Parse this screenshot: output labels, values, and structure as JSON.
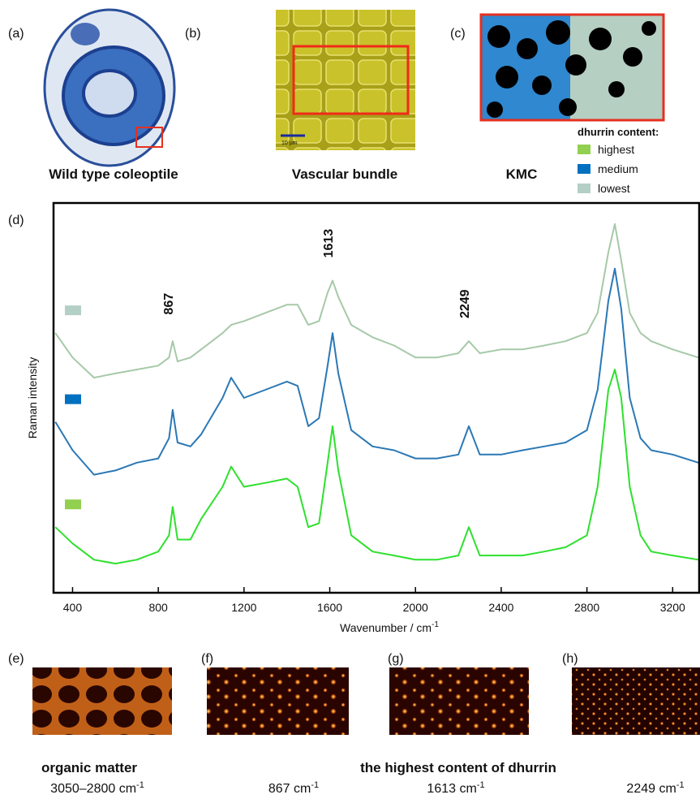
{
  "panels": {
    "a": {
      "label": "(a)",
      "caption": "Wild type coleoptile"
    },
    "b": {
      "label": "(b)",
      "caption": "Vascular bundle",
      "scale": "10 µm"
    },
    "c": {
      "label": "(c)",
      "caption": "KMC"
    },
    "d": {
      "label": "(d)"
    },
    "e": {
      "label": "(e)",
      "title": "organic matter",
      "band": {
        "text": "3050–2800 cm",
        "sup": "-1"
      }
    },
    "f": {
      "label": "(f)",
      "band": {
        "text": "867 cm",
        "sup": "-1"
      }
    },
    "g": {
      "label": "(g)",
      "band": {
        "text": "1613 cm",
        "sup": "-1"
      }
    },
    "h": {
      "label": "(h)",
      "band": {
        "text": "2249 cm",
        "sup": "-1"
      }
    },
    "fgh_title": "the highest content of dhurrin"
  },
  "legend_title": "dhurrin content:",
  "chart_data": {
    "type": "line",
    "xlabel": {
      "text": "Wavenumber / cm",
      "sup": "-1"
    },
    "ylabel": "Raman intensity",
    "xlim": [
      315,
      3320
    ],
    "ylim": [
      0,
      100
    ],
    "xticks": [
      400,
      800,
      1200,
      1600,
      2000,
      2400,
      2800,
      3200
    ],
    "annotations": [
      867,
      1613,
      2249
    ],
    "x": [
      320,
      400,
      500,
      600,
      700,
      800,
      850,
      867,
      890,
      950,
      1000,
      1100,
      1140,
      1200,
      1300,
      1400,
      1450,
      1500,
      1550,
      1590,
      1613,
      1640,
      1700,
      1800,
      1900,
      2000,
      2100,
      2200,
      2249,
      2300,
      2400,
      2500,
      2600,
      2700,
      2800,
      2850,
      2900,
      2930,
      2960,
      3000,
      3050,
      3100,
      3200,
      3320
    ],
    "series": [
      {
        "name": "highest",
        "color": "#2ee02e",
        "legend_color": "#92d050",
        "values": [
          16.7,
          12.5,
          8.3,
          7.3,
          8.3,
          10.4,
          14.6,
          21.9,
          13.5,
          13.5,
          18.8,
          27.1,
          32.3,
          27.1,
          28.1,
          29.2,
          27.1,
          16.7,
          17.7,
          33.3,
          42.7,
          31.3,
          14.6,
          10.4,
          9.4,
          8.3,
          8.3,
          9.4,
          16.7,
          9.4,
          9.4,
          9.4,
          10.4,
          11.5,
          14.6,
          27.1,
          52.1,
          57.3,
          50.0,
          27.1,
          14.6,
          10.4,
          9.4,
          8.3
        ]
      },
      {
        "name": "medium",
        "color": "#2a78b5",
        "legend_color": "#0070c0",
        "values": [
          43.8,
          36.5,
          30.2,
          31.3,
          33.3,
          34.4,
          39.6,
          46.9,
          38.5,
          37.5,
          40.6,
          50.0,
          55.2,
          50.0,
          52.1,
          54.2,
          53.1,
          42.7,
          44.8,
          58.3,
          66.7,
          56.3,
          41.7,
          37.5,
          36.5,
          34.4,
          34.4,
          35.4,
          42.7,
          35.4,
          35.4,
          36.5,
          37.5,
          38.5,
          41.7,
          52.1,
          75.0,
          83.3,
          72.9,
          50.0,
          39.6,
          36.5,
          35.4,
          33.3
        ]
      },
      {
        "name": "lowest",
        "color": "#a6c9a8",
        "legend_color": "#b4cfc6",
        "values": [
          66.7,
          60.4,
          55.2,
          56.3,
          57.3,
          58.3,
          60.4,
          64.6,
          59.4,
          60.4,
          62.5,
          66.7,
          68.8,
          69.8,
          71.9,
          74.0,
          74.0,
          68.8,
          69.8,
          77.1,
          80.2,
          76.0,
          68.8,
          65.6,
          63.5,
          60.4,
          60.4,
          61.5,
          64.6,
          61.5,
          62.5,
          62.5,
          63.5,
          64.6,
          66.7,
          71.9,
          87.5,
          94.8,
          85.4,
          71.9,
          66.7,
          64.6,
          62.5,
          60.4
        ]
      }
    ]
  }
}
